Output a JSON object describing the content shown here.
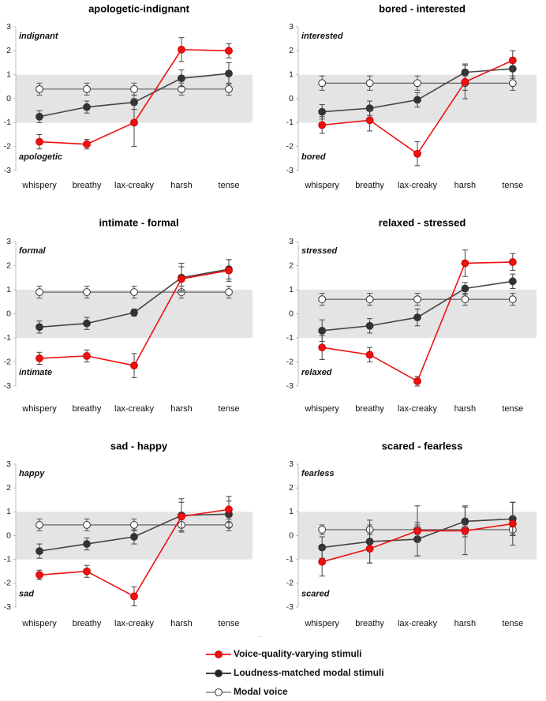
{
  "figure_note": ".",
  "legend": [
    {
      "label": "Voice-quality-varying stimuli",
      "color": "#ee1111",
      "marker": "filled"
    },
    {
      "label": "Loudness-matched modal stimuli",
      "color": "#222222",
      "marker": "filled"
    },
    {
      "label": "Modal voice",
      "color": "#444444",
      "marker": "hollow"
    }
  ],
  "chart_data": [
    {
      "type": "line",
      "title": "apologetic-indignant",
      "pole_top": "indignant",
      "pole_bottom": "apologetic",
      "categories": [
        "whispery",
        "breathy",
        "lax-creaky",
        "harsh",
        "tense"
      ],
      "ylim": [
        -3,
        3
      ],
      "yticks": [
        -3,
        -2,
        -1,
        0,
        1,
        2,
        3
      ],
      "shaded_band": [
        -1,
        1
      ],
      "series": [
        {
          "name": "Voice-quality-varying stimuli",
          "values": [
            -1.8,
            -1.9,
            -1.0,
            2.05,
            2.0
          ],
          "errors": [
            0.3,
            0.2,
            1.0,
            0.5,
            0.3
          ]
        },
        {
          "name": "Loudness-matched modal stimuli",
          "values": [
            -0.75,
            -0.35,
            -0.15,
            0.85,
            1.05
          ],
          "errors": [
            0.25,
            0.25,
            0.3,
            0.35,
            0.45
          ]
        },
        {
          "name": "Modal voice",
          "values": [
            0.4,
            0.4,
            0.4,
            0.4,
            0.4
          ],
          "errors": [
            0.25,
            0.25,
            0.25,
            0.25,
            0.25
          ]
        }
      ]
    },
    {
      "type": "line",
      "title": "bored - interested",
      "pole_top": "interested",
      "pole_bottom": "bored",
      "categories": [
        "whispery",
        "breathy",
        "lax-creaky",
        "harsh",
        "tense"
      ],
      "ylim": [
        -3,
        3
      ],
      "yticks": [
        -3,
        -2,
        -1,
        0,
        1,
        2,
        3
      ],
      "shaded_band": [
        -1,
        1
      ],
      "series": [
        {
          "name": "Voice-quality-varying stimuli",
          "values": [
            -1.1,
            -0.9,
            -2.3,
            0.7,
            1.6
          ],
          "errors": [
            0.35,
            0.45,
            0.5,
            0.7,
            0.4
          ]
        },
        {
          "name": "Loudness-matched modal stimuli",
          "values": [
            -0.55,
            -0.4,
            -0.05,
            1.1,
            1.25
          ],
          "errors": [
            0.3,
            0.3,
            0.3,
            0.35,
            0.4
          ]
        },
        {
          "name": "Modal voice",
          "values": [
            0.65,
            0.65,
            0.65,
            0.65,
            0.65
          ],
          "errors": [
            0.3,
            0.3,
            0.3,
            0.3,
            0.3
          ]
        }
      ]
    },
    {
      "type": "line",
      "title": "intimate - formal",
      "pole_top": "formal",
      "pole_bottom": "intimate",
      "categories": [
        "whispery",
        "breathy",
        "lax-creaky",
        "harsh",
        "tense"
      ],
      "ylim": [
        -3,
        3
      ],
      "yticks": [
        -3,
        -2,
        -1,
        0,
        1,
        2,
        3
      ],
      "shaded_band": [
        -1,
        1
      ],
      "series": [
        {
          "name": "Voice-quality-varying stimuli",
          "values": [
            -1.85,
            -1.75,
            -2.15,
            1.45,
            1.8
          ],
          "errors": [
            0.25,
            0.25,
            0.5,
            0.5,
            0.45
          ]
        },
        {
          "name": "Loudness-matched modal stimuli",
          "values": [
            -0.55,
            -0.4,
            0.05,
            1.5,
            1.85
          ],
          "errors": [
            0.25,
            0.25,
            0.15,
            0.6,
            0.4
          ]
        },
        {
          "name": "Modal voice",
          "values": [
            0.9,
            0.9,
            0.9,
            0.9,
            0.9
          ],
          "errors": [
            0.25,
            0.25,
            0.25,
            0.25,
            0.25
          ]
        }
      ]
    },
    {
      "type": "line",
      "title": "relaxed - stressed",
      "pole_top": "stressed",
      "pole_bottom": "relaxed",
      "categories": [
        "whispery",
        "breathy",
        "lax-creaky",
        "harsh",
        "tense"
      ],
      "ylim": [
        -3,
        3
      ],
      "yticks": [
        -3,
        -2,
        -1,
        0,
        1,
        2,
        3
      ],
      "shaded_band": [
        -1,
        1
      ],
      "series": [
        {
          "name": "Voice-quality-varying stimuli",
          "values": [
            -1.4,
            -1.7,
            -2.8,
            2.1,
            2.15
          ],
          "errors": [
            0.5,
            0.3,
            0.2,
            0.55,
            0.35
          ]
        },
        {
          "name": "Loudness-matched modal stimuli",
          "values": [
            -0.7,
            -0.5,
            -0.15,
            1.05,
            1.35
          ],
          "errors": [
            0.45,
            0.3,
            0.35,
            0.25,
            0.3
          ]
        },
        {
          "name": "Modal voice",
          "values": [
            0.6,
            0.6,
            0.6,
            0.6,
            0.6
          ],
          "errors": [
            0.25,
            0.25,
            0.25,
            0.25,
            0.25
          ]
        }
      ]
    },
    {
      "type": "line",
      "title": "sad - happy",
      "pole_top": "happy",
      "pole_bottom": "sad",
      "categories": [
        "whispery",
        "breathy",
        "lax-creaky",
        "harsh",
        "tense"
      ],
      "ylim": [
        -3,
        3
      ],
      "yticks": [
        -3,
        -2,
        -1,
        0,
        1,
        2,
        3
      ],
      "shaded_band": [
        -1,
        1
      ],
      "series": [
        {
          "name": "Voice-quality-varying stimuli",
          "values": [
            -1.65,
            -1.5,
            -2.55,
            0.8,
            1.1
          ],
          "errors": [
            0.2,
            0.25,
            0.4,
            0.6,
            0.55
          ]
        },
        {
          "name": "Loudness-matched modal stimuli",
          "values": [
            -0.65,
            -0.35,
            -0.05,
            0.85,
            0.9
          ],
          "errors": [
            0.3,
            0.25,
            0.3,
            0.7,
            0.55
          ]
        },
        {
          "name": "Modal voice",
          "values": [
            0.45,
            0.45,
            0.45,
            0.45,
            0.45
          ],
          "errors": [
            0.25,
            0.25,
            0.25,
            0.25,
            0.25
          ]
        }
      ]
    },
    {
      "type": "line",
      "title": "scared - fearless",
      "pole_top": "fearless",
      "pole_bottom": "scared",
      "categories": [
        "whispery",
        "breathy",
        "lax-creaky",
        "harsh",
        "tense"
      ],
      "ylim": [
        -3,
        3
      ],
      "yticks": [
        -3,
        -2,
        -1,
        0,
        1,
        2,
        3
      ],
      "shaded_band": [
        -1,
        1
      ],
      "series": [
        {
          "name": "Voice-quality-varying stimuli",
          "values": [
            -1.1,
            -0.55,
            0.2,
            0.2,
            0.5
          ],
          "errors": [
            0.6,
            0.6,
            1.05,
            1.0,
            0.9
          ]
        },
        {
          "name": "Loudness-matched modal stimuli",
          "values": [
            -0.5,
            -0.25,
            -0.15,
            0.6,
            0.7
          ],
          "errors": [
            0.45,
            0.9,
            0.7,
            0.65,
            0.7
          ]
        },
        {
          "name": "Modal voice",
          "values": [
            0.25,
            0.25,
            0.25,
            0.25,
            0.25
          ],
          "errors": [
            0.2,
            0.2,
            0.2,
            0.2,
            0.2
          ]
        }
      ]
    }
  ]
}
